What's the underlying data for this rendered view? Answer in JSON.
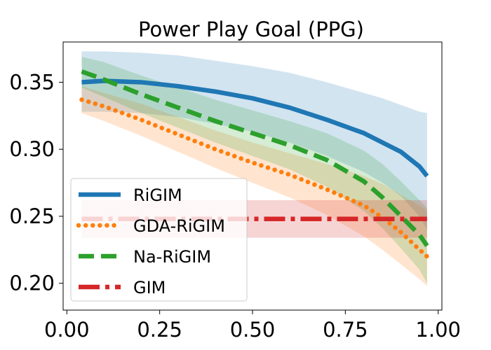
{
  "chart_data": {
    "type": "line",
    "title": "Power Play Goal (PPG)",
    "xlabel": "",
    "ylabel": "",
    "xlim": [
      -0.01,
      1.01
    ],
    "ylim": [
      0.18,
      0.38
    ],
    "xticks": [
      "0.00",
      "0.25",
      "0.50",
      "0.75",
      "1.00"
    ],
    "xtick_values": [
      0.0,
      0.25,
      0.5,
      0.75,
      1.0
    ],
    "yticks": [
      "0.20",
      "0.25",
      "0.30",
      "0.35"
    ],
    "ytick_values": [
      0.2,
      0.25,
      0.3,
      0.35
    ],
    "grid": false,
    "legend_position": "lower-left",
    "series": [
      {
        "name": "RiGIM",
        "color": "#1f77b4",
        "linestyle": "solid",
        "x": [
          0.04,
          0.1,
          0.2,
          0.3,
          0.4,
          0.5,
          0.6,
          0.7,
          0.8,
          0.85,
          0.9,
          0.95,
          0.97
        ],
        "y": [
          0.35,
          0.351,
          0.35,
          0.347,
          0.343,
          0.338,
          0.331,
          0.322,
          0.312,
          0.305,
          0.298,
          0.287,
          0.28
        ],
        "lower": [
          0.328,
          0.328,
          0.327,
          0.324,
          0.319,
          0.313,
          0.305,
          0.295,
          0.283,
          0.275,
          0.265,
          0.25,
          0.24
        ],
        "upper": [
          0.373,
          0.373,
          0.372,
          0.37,
          0.366,
          0.362,
          0.357,
          0.35,
          0.342,
          0.338,
          0.333,
          0.328,
          0.327
        ]
      },
      {
        "name": "GDA-RiGIM",
        "color": "#ff7f0e",
        "linestyle": "dotted",
        "x": [
          0.04,
          0.1,
          0.2,
          0.3,
          0.4,
          0.5,
          0.6,
          0.7,
          0.8,
          0.85,
          0.9,
          0.95,
          0.97
        ],
        "y": [
          0.337,
          0.332,
          0.322,
          0.311,
          0.3,
          0.29,
          0.281,
          0.27,
          0.258,
          0.249,
          0.238,
          0.225,
          0.22
        ],
        "lower": [
          0.327,
          0.321,
          0.31,
          0.298,
          0.286,
          0.275,
          0.264,
          0.251,
          0.235,
          0.225,
          0.214,
          0.203,
          0.198
        ],
        "upper": [
          0.347,
          0.342,
          0.334,
          0.324,
          0.314,
          0.305,
          0.297,
          0.289,
          0.28,
          0.274,
          0.266,
          0.258,
          0.254
        ]
      },
      {
        "name": "Na-RiGIM",
        "color": "#2ca02c",
        "linestyle": "dashed",
        "x": [
          0.04,
          0.1,
          0.2,
          0.3,
          0.4,
          0.5,
          0.6,
          0.7,
          0.8,
          0.85,
          0.9,
          0.95,
          0.97
        ],
        "y": [
          0.358,
          0.352,
          0.341,
          0.331,
          0.321,
          0.312,
          0.303,
          0.292,
          0.276,
          0.264,
          0.25,
          0.236,
          0.228
        ],
        "lower": [
          0.346,
          0.339,
          0.327,
          0.316,
          0.305,
          0.295,
          0.285,
          0.272,
          0.254,
          0.241,
          0.226,
          0.21,
          0.2
        ],
        "upper": [
          0.369,
          0.365,
          0.355,
          0.346,
          0.337,
          0.329,
          0.321,
          0.312,
          0.299,
          0.289,
          0.276,
          0.262,
          0.256
        ]
      },
      {
        "name": "GIM",
        "color": "#d62728",
        "linestyle": "dashdot",
        "x": [
          0.04,
          0.97
        ],
        "y": [
          0.248,
          0.248
        ],
        "lower": [
          0.234,
          0.234
        ],
        "upper": [
          0.262,
          0.262
        ]
      }
    ]
  }
}
